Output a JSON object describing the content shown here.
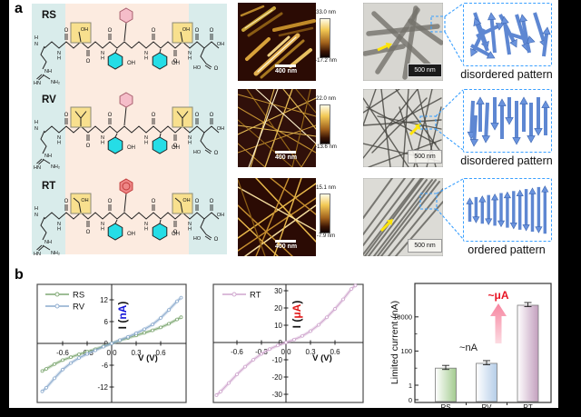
{
  "panel_a": {
    "label": "a",
    "molecules": [
      {
        "name": "RS",
        "box_residue": "serine",
        "box_text": "OH",
        "phenyl_color": "#f5bdc9",
        "phenyl_stroke": "#a85f6e",
        "aromatic_inner_circle": false
      },
      {
        "name": "RV",
        "box_residue": "valine",
        "box_text": "",
        "phenyl_color": "#f5bdc9",
        "phenyl_stroke": "#a85f6e",
        "aromatic_inner_circle": false
      },
      {
        "name": "RT",
        "box_residue": "threonine",
        "box_text": "OH",
        "phenyl_color": "#ee8787",
        "phenyl_stroke": "#c03a3a",
        "aromatic_inner_circle": true
      }
    ],
    "atom_labels": {
      "h": "H",
      "n": "N",
      "o": "O",
      "oh": "OH",
      "ho": "HO",
      "nh": "NH",
      "hn": "HN",
      "nh2": "NH₂"
    },
    "band_colors": {
      "terminal": "#d9eceb",
      "core": "#fcebe0"
    },
    "afm_images": [
      {
        "scale_bar": "400 nm",
        "colorbar_max": "33.0 nm",
        "colorbar_min": "-17.2 nm"
      },
      {
        "scale_bar": "400 nm",
        "colorbar_max": "22.0 nm",
        "colorbar_min": "-13.6 nm"
      },
      {
        "scale_bar": "400 nm",
        "colorbar_max": "15.1 nm",
        "colorbar_min": "-7.9 nm"
      }
    ],
    "tem_images": [
      {
        "scale_bar": "500 nm"
      },
      {
        "scale_bar": "500 nm"
      },
      {
        "scale_bar": "500 nm"
      }
    ],
    "patterns": [
      {
        "caption": "disordered pattern"
      },
      {
        "caption": "disordered pattern"
      },
      {
        "caption": "ordered pattern"
      }
    ]
  },
  "panel_b": {
    "label": "b"
  },
  "chart_data": [
    {
      "type": "line",
      "xlabel": "V (V)",
      "ylabel_prefix": "I (",
      "ylabel_unit": "nA",
      "ylabel_suffix": ")",
      "unit_color": "#1414d8",
      "xlim": [
        -0.91,
        0.91
      ],
      "ylim": [
        -14.5,
        14.5
      ],
      "x_ticks": [
        "-0.6",
        "-0.3",
        "0.0",
        "0.3",
        "0.6"
      ],
      "y_ticks": [
        "-12",
        "-6",
        "0",
        "6",
        "12"
      ],
      "legend_position": "top-left",
      "grid": false,
      "series": [
        {
          "name": "RS",
          "color": "#7fa873",
          "x": [
            -0.85,
            -0.8,
            -0.7,
            -0.6,
            -0.5,
            -0.4,
            -0.3,
            -0.2,
            -0.1,
            0,
            0.1,
            0.2,
            0.3,
            0.4,
            0.5,
            0.6,
            0.7,
            0.8,
            0.85
          ],
          "y": [
            -7.6,
            -7.0,
            -5.7,
            -4.6,
            -3.8,
            -3.0,
            -2.3,
            -1.6,
            -0.8,
            0,
            0.8,
            1.5,
            2.2,
            2.9,
            3.6,
            4.4,
            5.4,
            6.6,
            7.2
          ]
        },
        {
          "name": "RV",
          "color": "#8cabce",
          "x": [
            -0.85,
            -0.8,
            -0.7,
            -0.6,
            -0.5,
            -0.4,
            -0.3,
            -0.2,
            -0.1,
            0,
            0.1,
            0.2,
            0.3,
            0.4,
            0.5,
            0.6,
            0.7,
            0.8,
            0.85
          ],
          "y": [
            -13.2,
            -12.2,
            -9.6,
            -7.2,
            -5.4,
            -4.0,
            -2.9,
            -1.9,
            -0.9,
            0,
            0.9,
            1.8,
            2.8,
            3.9,
            5.2,
            7.0,
            9.2,
            11.6,
            12.6
          ]
        }
      ]
    },
    {
      "type": "line",
      "xlabel": "V (V)",
      "ylabel_prefix": "I (",
      "ylabel_unit": "μA",
      "ylabel_suffix": ")",
      "unit_color": "#e01818",
      "xlim": [
        -0.91,
        0.91
      ],
      "ylim": [
        -35,
        35
      ],
      "x_ticks": [
        "-0.6",
        "-0.3",
        "0.0",
        "0.3",
        "0.6"
      ],
      "y_ticks": [
        "-30",
        "-20",
        "-10",
        "0",
        "10",
        "20",
        "30"
      ],
      "legend_position": "top-left",
      "grid": false,
      "series": [
        {
          "name": "RT",
          "color": "#cfa6ce",
          "x": [
            -0.85,
            -0.8,
            -0.7,
            -0.6,
            -0.5,
            -0.4,
            -0.3,
            -0.2,
            -0.1,
            0,
            0.1,
            0.2,
            0.3,
            0.4,
            0.5,
            0.6,
            0.7,
            0.8,
            0.85
          ],
          "y": [
            -30.5,
            -28.5,
            -23.5,
            -18.5,
            -14.0,
            -10.0,
            -6.6,
            -3.8,
            -1.7,
            0,
            1.7,
            3.8,
            6.6,
            10.2,
            14.6,
            19.5,
            25.0,
            31.0,
            33.0
          ]
        }
      ]
    },
    {
      "type": "bar",
      "ylabel": "Limited current (nA)",
      "yscale": "log",
      "categories": [
        "RS",
        "RV",
        "RT"
      ],
      "values": [
        10,
        19,
        48000
      ],
      "y_ticks": [
        "0",
        "1",
        "100",
        "10000"
      ],
      "bar_colors": [
        "#a3cb8f",
        "#b5cde8",
        "#c39fbe"
      ],
      "annotations": [
        {
          "text": "~nA",
          "color": "#1a1a1a"
        },
        {
          "text": "~μA",
          "color": "#e81525"
        }
      ]
    }
  ]
}
